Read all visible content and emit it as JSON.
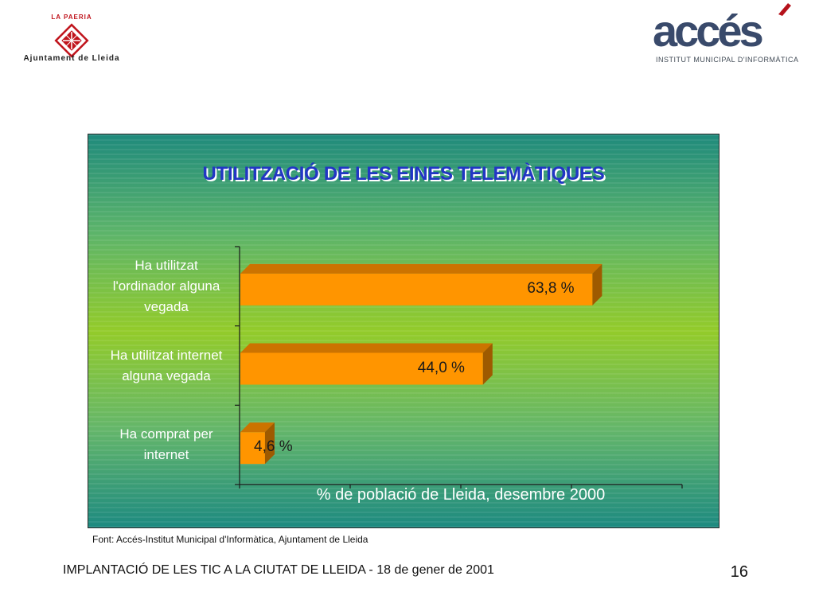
{
  "header": {
    "left_logo": {
      "top_text": "LA PAERIA",
      "bottom_text": "Ajuntament de Lleida"
    },
    "right_logo": {
      "brand": "accés",
      "subtitle": "INSTITUT MUNICIPAL D'INFORMÀTICA"
    }
  },
  "chart_data": {
    "type": "bar",
    "orientation": "horizontal",
    "title": "UTILITZACIÓ DE LES EINES TELEMÀTIQUES",
    "xlabel": "% de població de Lleida, desembre 2000",
    "ylabel": "",
    "categories": [
      "Ha utilitzat l'ordinador alguna vegada",
      "Ha utilitzat internet alguna vegada",
      "Ha comprat per internet"
    ],
    "category_lines": [
      [
        "Ha utilitzat",
        "l'ordinador alguna",
        "vegada"
      ],
      [
        "Ha utilitzat internet",
        "alguna vegada"
      ],
      [
        "Ha comprat per",
        "internet"
      ]
    ],
    "values": [
      63.8,
      44.0,
      4.6
    ],
    "value_labels": [
      "63,8 %",
      "44,0 %",
      "4,6 %"
    ],
    "xlim": [
      0,
      80
    ],
    "legend": "none",
    "grid": false,
    "three_d": true
  },
  "colors": {
    "bar_front": "#ff9500",
    "bar_top": "#cc7300",
    "bar_side": "#9e5a00",
    "title": "#2236c4",
    "panel_mid": "#93cb2a",
    "panel_edge": "#1f8a7c"
  },
  "source_note": "Font:  Accés-Institut Municipal d'Informàtica, Ajuntament de Lleida",
  "footer": {
    "text": "IMPLANTACIÓ DE LES TIC A LA CIUTAT DE LLEIDA - 18 de gener de 2001",
    "page": "16"
  }
}
